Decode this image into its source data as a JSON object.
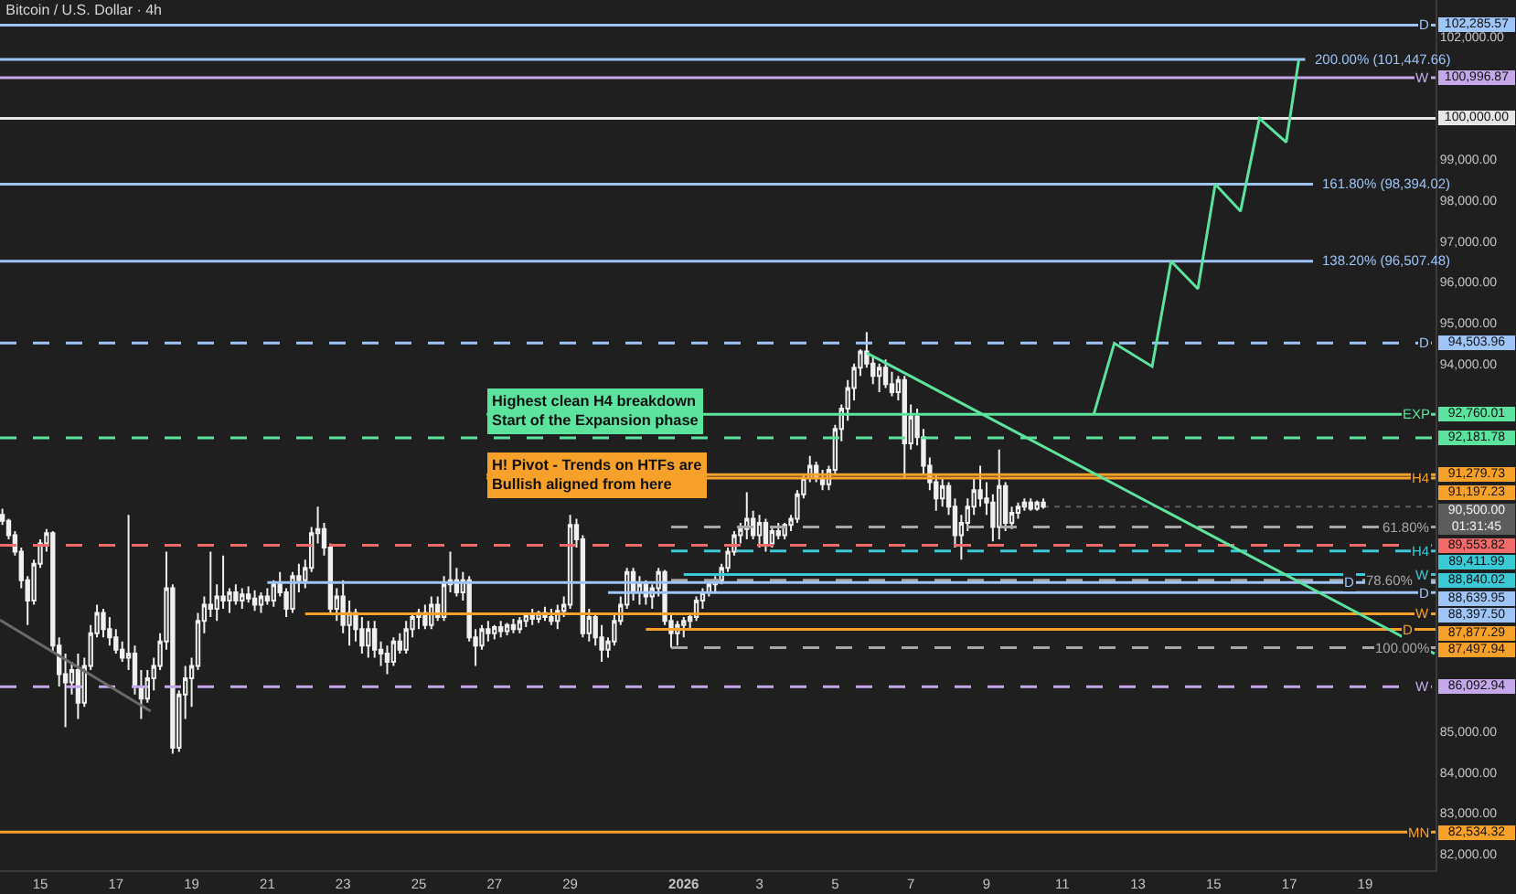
{
  "chart_data": {
    "type": "candlestick",
    "title": "Bitcoin / U.S. Dollar · 4h",
    "x": [
      "2025-12-14T00:00",
      "2025-12-14T04:00",
      "2025-12-14T08:00",
      "2025-12-14T12:00",
      "2025-12-14T16:00",
      "2025-12-14T20:00",
      "2025-12-15T00:00",
      "2025-12-15T04:00",
      "2025-12-15T08:00",
      "2025-12-15T12:00",
      "2025-12-15T16:00",
      "2025-12-15T20:00",
      "2025-12-16T00:00",
      "2025-12-16T04:00",
      "2025-12-16T08:00",
      "2025-12-16T12:00",
      "2025-12-16T16:00",
      "2025-12-16T20:00",
      "2025-12-17T00:00",
      "2025-12-17T04:00",
      "2025-12-17T08:00",
      "2025-12-17T12:00",
      "2025-12-17T16:00",
      "2025-12-17T20:00",
      "2025-12-18T00:00",
      "2025-12-18T04:00",
      "2025-12-18T08:00",
      "2025-12-18T12:00",
      "2025-12-18T16:00",
      "2025-12-18T20:00",
      "2025-12-19T00:00",
      "2025-12-19T04:00",
      "2025-12-19T08:00",
      "2025-12-19T12:00",
      "2025-12-19T16:00",
      "2025-12-19T20:00",
      "2025-12-20T00:00",
      "2025-12-20T04:00",
      "2025-12-20T08:00",
      "2025-12-20T12:00",
      "2025-12-20T16:00",
      "2025-12-20T20:00",
      "2025-12-21T00:00",
      "2025-12-21T04:00",
      "2025-12-21T08:00",
      "2025-12-21T12:00",
      "2025-12-21T16:00",
      "2025-12-21T20:00",
      "2025-12-22T00:00",
      "2025-12-22T04:00",
      "2025-12-22T08:00",
      "2025-12-22T12:00",
      "2025-12-22T16:00",
      "2025-12-22T20:00",
      "2025-12-23T00:00",
      "2025-12-23T04:00",
      "2025-12-23T08:00",
      "2025-12-23T12:00",
      "2025-12-23T16:00",
      "2025-12-23T20:00",
      "2025-12-24T00:00",
      "2025-12-24T04:00",
      "2025-12-24T08:00",
      "2025-12-24T12:00",
      "2025-12-24T16:00",
      "2025-12-24T20:00",
      "2025-12-25T00:00",
      "2025-12-25T04:00",
      "2025-12-25T08:00",
      "2025-12-25T12:00",
      "2025-12-25T16:00",
      "2025-12-25T20:00",
      "2025-12-26T00:00",
      "2025-12-26T04:00",
      "2025-12-26T08:00",
      "2025-12-26T12:00",
      "2025-12-26T16:00",
      "2025-12-26T20:00",
      "2025-12-27T00:00",
      "2025-12-27T04:00",
      "2025-12-27T08:00",
      "2025-12-27T12:00",
      "2025-12-27T16:00",
      "2025-12-27T20:00",
      "2025-12-28T00:00",
      "2025-12-28T04:00",
      "2025-12-28T08:00",
      "2025-12-28T12:00",
      "2025-12-28T16:00",
      "2025-12-28T20:00",
      "2025-12-29T00:00",
      "2025-12-29T04:00",
      "2025-12-29T08:00",
      "2025-12-29T12:00",
      "2025-12-29T16:00",
      "2025-12-29T20:00",
      "2025-12-30T00:00",
      "2025-12-30T04:00",
      "2025-12-30T08:00",
      "2025-12-30T12:00",
      "2025-12-30T16:00",
      "2025-12-30T20:00",
      "2025-12-31T00:00",
      "2025-12-31T04:00",
      "2025-12-31T08:00",
      "2025-12-31T12:00",
      "2025-12-31T16:00",
      "2025-12-31T20:00",
      "2026-01-01T00:00",
      "2026-01-01T04:00",
      "2026-01-01T08:00",
      "2026-01-01T12:00",
      "2026-01-01T16:00",
      "2026-01-01T20:00",
      "2026-01-02T00:00",
      "2026-01-02T04:00",
      "2026-01-02T08:00",
      "2026-01-02T12:00",
      "2026-01-02T16:00",
      "2026-01-02T20:00",
      "2026-01-03T00:00",
      "2026-01-03T04:00",
      "2026-01-03T08:00",
      "2026-01-03T12:00",
      "2026-01-03T16:00",
      "2026-01-03T20:00",
      "2026-01-04T00:00",
      "2026-01-04T04:00",
      "2026-01-04T08:00",
      "2026-01-04T12:00",
      "2026-01-04T16:00",
      "2026-01-04T20:00",
      "2026-01-05T00:00",
      "2026-01-05T04:00",
      "2026-01-05T08:00",
      "2026-01-05T12:00",
      "2026-01-05T16:00",
      "2026-01-05T20:00",
      "2026-01-06T00:00",
      "2026-01-06T04:00",
      "2026-01-06T08:00",
      "2026-01-06T12:00",
      "2026-01-06T16:00",
      "2026-01-06T20:00",
      "2026-01-07T00:00",
      "2026-01-07T04:00",
      "2026-01-07T08:00",
      "2026-01-07T12:00",
      "2026-01-07T16:00",
      "2026-01-07T20:00",
      "2026-01-08T00:00",
      "2026-01-08T04:00",
      "2026-01-08T08:00",
      "2026-01-08T12:00",
      "2026-01-08T16:00",
      "2026-01-08T20:00",
      "2026-01-09T00:00",
      "2026-01-09T04:00",
      "2026-01-09T08:00",
      "2026-01-09T12:00",
      "2026-01-09T16:00",
      "2026-01-09T20:00",
      "2026-01-10T00:00",
      "2026-01-10T04:00",
      "2026-01-10T08:00",
      "2026-01-10T12:00"
    ],
    "ohlc": [
      [
        90300,
        90450,
        90050,
        90150
      ],
      [
        90150,
        90200,
        89700,
        89800
      ],
      [
        89800,
        89900,
        89300,
        89400
      ],
      [
        89400,
        89500,
        88500,
        88700
      ],
      [
        88700,
        88800,
        87600,
        88200
      ],
      [
        88200,
        89200,
        88100,
        89100
      ],
      [
        89100,
        89700,
        89000,
        89600
      ],
      [
        89600,
        89950,
        89400,
        89850
      ],
      [
        89850,
        89900,
        86950,
        87100
      ],
      [
        87100,
        87300,
        86100,
        86400
      ],
      [
        86400,
        86900,
        85100,
        86200
      ],
      [
        86200,
        86700,
        85900,
        86500
      ],
      [
        86500,
        86900,
        85300,
        85700
      ],
      [
        85700,
        86800,
        85600,
        86600
      ],
      [
        86600,
        87600,
        86500,
        87400
      ],
      [
        87400,
        88100,
        87300,
        87900
      ],
      [
        87900,
        88000,
        87300,
        87500
      ],
      [
        87500,
        87800,
        87100,
        87300
      ],
      [
        87300,
        87500,
        86900,
        87000
      ],
      [
        87000,
        87200,
        86700,
        86800
      ],
      [
        86800,
        90300,
        86500,
        86900
      ],
      [
        86900,
        87100,
        85900,
        86100
      ],
      [
        86100,
        86500,
        85300,
        85800
      ],
      [
        85800,
        86500,
        85700,
        86300
      ],
      [
        86300,
        86800,
        86000,
        86600
      ],
      [
        86600,
        87400,
        86500,
        87200
      ],
      [
        87200,
        89400,
        87000,
        88500
      ],
      [
        88500,
        88600,
        84450,
        84600
      ],
      [
        84600,
        86000,
        84500,
        85900
      ],
      [
        85900,
        86600,
        85300,
        86300
      ],
      [
        86300,
        86800,
        85600,
        86600
      ],
      [
        86600,
        87900,
        86500,
        87700
      ],
      [
        87700,
        88300,
        87400,
        88100
      ],
      [
        88100,
        89400,
        87800,
        88000
      ],
      [
        88000,
        88600,
        87700,
        88300
      ],
      [
        88300,
        89300,
        88000,
        88200
      ],
      [
        88200,
        88500,
        87900,
        88400
      ],
      [
        88400,
        88600,
        88100,
        88200
      ],
      [
        88200,
        88500,
        88000,
        88350
      ],
      [
        88350,
        88550,
        88150,
        88250
      ],
      [
        88250,
        88450,
        87950,
        88100
      ],
      [
        88100,
        88400,
        87900,
        88300
      ],
      [
        88300,
        88500,
        88100,
        88200
      ],
      [
        88200,
        88700,
        88050,
        88600
      ],
      [
        88600,
        88900,
        88300,
        88400
      ],
      [
        88400,
        88500,
        87800,
        88000
      ],
      [
        88000,
        88900,
        87900,
        88800
      ],
      [
        88800,
        89100,
        88400,
        88700
      ],
      [
        88700,
        89200,
        88500,
        89000
      ],
      [
        89000,
        90000,
        88900,
        89850
      ],
      [
        89850,
        90500,
        89600,
        89950
      ],
      [
        89950,
        90100,
        89300,
        89500
      ],
      [
        89500,
        89600,
        87900,
        88000
      ],
      [
        88000,
        88500,
        87700,
        88300
      ],
      [
        88300,
        88700,
        87400,
        87600
      ],
      [
        87600,
        88200,
        87100,
        87900
      ],
      [
        87900,
        88000,
        87200,
        87500
      ],
      [
        87500,
        87800,
        86900,
        87100
      ],
      [
        87100,
        87700,
        86800,
        87500
      ],
      [
        87500,
        87700,
        86800,
        87000
      ],
      [
        87000,
        87200,
        86600,
        86900
      ],
      [
        86900,
        87100,
        86400,
        86700
      ],
      [
        86700,
        87300,
        86600,
        87200
      ],
      [
        87200,
        87400,
        86900,
        87000
      ],
      [
        87000,
        87700,
        86900,
        87500
      ],
      [
        87500,
        87900,
        87300,
        87800
      ],
      [
        87800,
        88000,
        87500,
        87900
      ],
      [
        87900,
        88100,
        87500,
        87600
      ],
      [
        87600,
        88300,
        87500,
        88100
      ],
      [
        88100,
        88300,
        87700,
        87800
      ],
      [
        87800,
        88800,
        87700,
        88600
      ],
      [
        88600,
        89400,
        88400,
        88700
      ],
      [
        88700,
        89000,
        88300,
        88400
      ],
      [
        88400,
        88900,
        88200,
        88700
      ],
      [
        88700,
        88800,
        87200,
        87300
      ],
      [
        87300,
        87500,
        86600,
        87100
      ],
      [
        87100,
        87600,
        87000,
        87500
      ],
      [
        87500,
        87700,
        87200,
        87400
      ],
      [
        87400,
        87600,
        87250,
        87550
      ],
      [
        87550,
        87700,
        87300,
        87450
      ],
      [
        87450,
        87650,
        87350,
        87600
      ],
      [
        87600,
        87750,
        87400,
        87500
      ],
      [
        87500,
        87800,
        87400,
        87700
      ],
      [
        87700,
        87900,
        87550,
        87850
      ],
      [
        87850,
        88000,
        87600,
        87750
      ],
      [
        87750,
        87950,
        87650,
        87900
      ],
      [
        87900,
        88050,
        87700,
        87800
      ],
      [
        87800,
        88000,
        87600,
        87700
      ],
      [
        87700,
        88100,
        87500,
        87950
      ],
      [
        87950,
        88300,
        87800,
        88100
      ],
      [
        88100,
        90300,
        88000,
        90050
      ],
      [
        90050,
        90200,
        89500,
        89700
      ],
      [
        89700,
        89800,
        87300,
        87400
      ],
      [
        87400,
        88000,
        87200,
        87800
      ],
      [
        87800,
        87900,
        87100,
        87300
      ],
      [
        87300,
        87600,
        86700,
        87000
      ],
      [
        87000,
        87300,
        86800,
        87200
      ],
      [
        87200,
        87900,
        87100,
        87700
      ],
      [
        87700,
        88300,
        87600,
        88100
      ],
      [
        88100,
        89000,
        88000,
        88900
      ],
      [
        88900,
        89000,
        88200,
        88400
      ],
      [
        88400,
        88800,
        88100,
        88600
      ],
      [
        88600,
        88700,
        88100,
        88300
      ],
      [
        88300,
        88600,
        88000,
        88500
      ],
      [
        88500,
        89000,
        88300,
        88900
      ],
      [
        88900,
        88950,
        87600,
        87700
      ],
      [
        87700,
        87900,
        87050,
        87400
      ],
      [
        87400,
        87700,
        87100,
        87600
      ],
      [
        87600,
        87800,
        87300,
        87700
      ],
      [
        87700,
        87900,
        87500,
        87800
      ],
      [
        87800,
        88300,
        87700,
        88200
      ],
      [
        88200,
        88500,
        88000,
        88400
      ],
      [
        88400,
        88700,
        88300,
        88600
      ],
      [
        88600,
        88800,
        88400,
        88700
      ],
      [
        88700,
        89100,
        88600,
        89000
      ],
      [
        89000,
        89500,
        88900,
        89400
      ],
      [
        89400,
        89900,
        89300,
        89800
      ],
      [
        89800,
        90100,
        89600,
        89950
      ],
      [
        89950,
        90850,
        89700,
        90200
      ],
      [
        90200,
        90400,
        89700,
        89800
      ],
      [
        89800,
        90300,
        89500,
        90100
      ],
      [
        90100,
        90200,
        89400,
        89600
      ],
      [
        89600,
        90000,
        89500,
        89900
      ],
      [
        89900,
        90100,
        89700,
        89800
      ],
      [
        89800,
        90100,
        89700,
        90050
      ],
      [
        90050,
        90300,
        89900,
        90200
      ],
      [
        90200,
        90900,
        90100,
        90800
      ],
      [
        90800,
        91300,
        90700,
        91200
      ],
      [
        91200,
        91740,
        91100,
        91500
      ],
      [
        91500,
        91600,
        91100,
        91200
      ],
      [
        91200,
        91400,
        90900,
        91050
      ],
      [
        91050,
        91500,
        90900,
        91400
      ],
      [
        91400,
        92500,
        91300,
        92400
      ],
      [
        92400,
        93000,
        92100,
        92900
      ],
      [
        92900,
        93600,
        92600,
        93400
      ],
      [
        93400,
        94000,
        93100,
        93900
      ],
      [
        93900,
        94350,
        93700,
        94300
      ],
      [
        94300,
        94770,
        93900,
        94000
      ],
      [
        94000,
        94200,
        93500,
        93700
      ],
      [
        93700,
        94000,
        93300,
        93900
      ],
      [
        93900,
        94100,
        93400,
        93500
      ],
      [
        93500,
        93800,
        93200,
        93300
      ],
      [
        93300,
        93700,
        93100,
        93600
      ],
      [
        93600,
        93700,
        91200,
        92050
      ],
      [
        92050,
        93000,
        91900,
        92700
      ],
      [
        92700,
        92900,
        92000,
        92200
      ],
      [
        92200,
        92400,
        91300,
        91500
      ],
      [
        91500,
        91700,
        90900,
        91100
      ],
      [
        91100,
        91300,
        90400,
        90700
      ],
      [
        90700,
        91200,
        90500,
        91000
      ],
      [
        91000,
        91100,
        90300,
        90500
      ],
      [
        90500,
        90700,
        89500,
        89800
      ],
      [
        89800,
        90300,
        89200,
        90100
      ],
      [
        90100,
        90700,
        89900,
        90500
      ],
      [
        90500,
        91200,
        90300,
        90900
      ],
      [
        90900,
        91500,
        90500,
        90700
      ],
      [
        90700,
        91100,
        90300,
        90600
      ],
      [
        90600,
        90800,
        89650,
        90000
      ],
      [
        90000,
        91900,
        89700,
        91000
      ],
      [
        91000,
        91100,
        89900,
        90100
      ],
      [
        90100,
        90500,
        89950,
        90350
      ],
      [
        90350,
        90600,
        90200,
        90500
      ],
      [
        90500,
        90700,
        90400,
        90600
      ],
      [
        90600,
        90700,
        90400,
        90450
      ],
      [
        90450,
        90650,
        90400,
        90600
      ],
      [
        90600,
        90700,
        90450,
        90500
      ]
    ],
    "series": [
      {
        "type": "line",
        "name": "D",
        "color": "#9fc5f8",
        "x": [
          "2025-12-13T22:30",
          "2026-01-20T20:40"
        ],
        "values": [
          102285.57,
          102285.57
        ],
        "value_labels": [
          null,
          "102,285.57"
        ]
      },
      {
        "type": "line",
        "name": "200.00% (101,447.66)",
        "color": "#9fc5f8",
        "x": [
          "2025-12-13T22:30",
          "2026-01-17T10:00"
        ],
        "values": [
          101447.66,
          101447.66
        ]
      },
      {
        "type": "line",
        "name": "W",
        "color": "#c5a8ea",
        "x": [
          "2025-12-13T22:30",
          "2026-01-20T20:40"
        ],
        "values": [
          100996.87,
          100996.87
        ],
        "value_labels": [
          null,
          "100,996.87"
        ]
      },
      {
        "type": "line",
        "color": "#e6e6e6",
        "x": [
          "2025-12-13T22:30",
          "2026-01-20T20:40"
        ],
        "values": [
          100000,
          100000
        ],
        "value_labels": [
          null,
          "100,000.00"
        ]
      },
      {
        "type": "line",
        "name": "161.80% (98,394.02)",
        "color": "#9fc5f8",
        "x": [
          "2025-12-13T22:30",
          "2026-01-17T15:00"
        ],
        "values": [
          98394.02,
          98394.02
        ]
      },
      {
        "type": "line",
        "name": "138.20% (96,507.48)",
        "color": "#9fc5f8",
        "x": [
          "2025-12-13T22:30",
          "2026-01-17T15:00"
        ],
        "values": [
          96507.48,
          96507.48
        ]
      },
      {
        "type": "line",
        "name": "D",
        "color": "#9fc5f8",
        "line_style": "dashed",
        "x": [
          "2025-12-13T22:30",
          "2026-01-20T20:40"
        ],
        "values": [
          94503.96,
          94503.96
        ],
        "value_labels": [
          null,
          "94,503.96"
        ]
      },
      {
        "type": "line",
        "name": "EXP",
        "color": "#5ce39e",
        "x": [
          "2025-12-26T19:00",
          "2026-01-20T20:40"
        ],
        "values": [
          92760.01,
          92760.01
        ],
        "value_labels": [
          null,
          "92,760.01"
        ]
      },
      {
        "type": "line",
        "color": "#5ce39e",
        "line_style": "dashed",
        "x": [
          "2025-12-13T22:30",
          "2026-01-20T20:40"
        ],
        "values": [
          92181.78,
          92181.78
        ],
        "value_labels": [
          null,
          "92,181.78"
        ]
      },
      {
        "type": "line",
        "color": "#f7a12b",
        "x": [
          "2025-12-26T19:00",
          "2026-01-20T20:40"
        ],
        "values": [
          91279.73,
          91279.73
        ],
        "value_labels": [
          null,
          "91,279.73"
        ]
      },
      {
        "type": "line",
        "name": "H4",
        "color": "#f7a12b",
        "x": [
          "2025-12-26T19:00",
          "2026-01-20T20:40"
        ],
        "values": [
          91197.23,
          91197.23
        ],
        "value_labels": [
          null,
          "91,197.23"
        ]
      },
      {
        "type": "line",
        "name": "61.80%",
        "color": "#a8a8a8",
        "line_style": "dashed",
        "x": [
          "2025-12-31T16:00",
          "2026-01-20T20:40"
        ],
        "values": [
          90000,
          90000
        ]
      },
      {
        "type": "line",
        "color": "#f26b6b",
        "line_style": "dashed",
        "x": [
          "2025-12-13T22:30",
          "2026-01-20T20:40"
        ],
        "values": [
          89553.82,
          89553.82
        ],
        "value_labels": [
          null,
          "89,553.82"
        ]
      },
      {
        "type": "line",
        "name": "H4",
        "color": "#3cc9d6",
        "line_style": "dashed",
        "x": [
          "2025-12-31T16:00",
          "2026-01-20T20:40"
        ],
        "values": [
          89411.99,
          89411.99
        ],
        "value_labels": [
          null,
          "89,411.99"
        ]
      },
      {
        "type": "line",
        "name": "W",
        "color": "#3cc9d6",
        "x": [
          "2026-01-01T00:00",
          "2026-01-20T20:40"
        ],
        "values": [
          88840.02,
          88840.02
        ],
        "value_labels": [
          null,
          "88,840.02"
        ]
      },
      {
        "type": "line",
        "name": "78.60%",
        "color": "#a8a8a8",
        "line_style": "dashed",
        "x": [
          "2025-12-31T16:00",
          "2026-01-20T20:40"
        ],
        "values": [
          88700,
          88700
        ]
      },
      {
        "type": "line",
        "name": "D",
        "color": "#9fc5f8",
        "x": [
          "2025-12-21T00:00",
          "2026-01-20T20:40"
        ],
        "values": [
          88639.95,
          88639.95
        ],
        "value_labels": [
          null,
          "88,639.95"
        ]
      },
      {
        "type": "line",
        "name": "D",
        "color": "#9fc5f8",
        "x": [
          "2025-12-30T00:00",
          "2026-01-20T20:40"
        ],
        "values": [
          88397.5,
          88397.5
        ],
        "value_labels": [
          null,
          "88,397.50"
        ]
      },
      {
        "type": "line",
        "name": "W",
        "color": "#f7a12b",
        "x": [
          "2025-12-22T00:00",
          "2026-01-20T20:40"
        ],
        "values": [
          87877.29,
          87877.29
        ],
        "value_labels": [
          null,
          "87,877.29"
        ]
      },
      {
        "type": "line",
        "name": "D",
        "color": "#f7a12b",
        "x": [
          "2025-12-31T00:00",
          "2026-01-20T20:40"
        ],
        "values": [
          87497.94,
          87497.94
        ],
        "value_labels": [
          null,
          "87,497.94"
        ]
      },
      {
        "type": "line",
        "name": "100.00%",
        "color": "#a8a8a8",
        "line_style": "dashed",
        "x": [
          "2025-12-31T16:00",
          "2026-01-20T20:40"
        ],
        "values": [
          87050,
          87050
        ]
      },
      {
        "type": "line",
        "name": "W",
        "color": "#c5a8ea",
        "line_style": "dashed",
        "x": [
          "2025-12-13T22:30",
          "2026-01-20T20:40"
        ],
        "values": [
          86092.94,
          86092.94
        ],
        "value_labels": [
          null,
          "86,092.94"
        ]
      },
      {
        "type": "line",
        "name": "MN",
        "color": "#f7a12b",
        "x": [
          "2025-12-13T22:30",
          "2026-01-20T20:40"
        ],
        "values": [
          82534.32,
          82534.32
        ],
        "value_labels": [
          null,
          "82,534.32"
        ]
      },
      {
        "type": "line",
        "color": "#5ce39e",
        "x": [
          "2026-01-05T20:00",
          "2026-01-20T20:00"
        ],
        "values": [
          94260,
          86900
        ]
      },
      {
        "type": "line",
        "color": "#5ce39e",
        "x": [
          "2026-01-11T20:00",
          "2026-01-12T09:00",
          "2026-01-13T09:00",
          "2026-01-13T21:00",
          "2026-01-14T14:00",
          "2026-01-15T01:00",
          "2026-01-15T17:00",
          "2026-01-16T05:00",
          "2026-01-16T22:00",
          "2026-01-17T06:00"
        ],
        "values": [
          92760,
          94500,
          93930,
          96507,
          95830,
          98394,
          97730,
          100000,
          99420,
          101447
        ]
      },
      {
        "type": "line",
        "color": "#6a6a6a",
        "x": [
          "2025-12-13T22:30",
          "2025-12-17T22:00"
        ],
        "values": [
          87725,
          85495
        ]
      }
    ],
    "ref_lines": [
      {
        "axis": "y",
        "value": 90500,
        "label": "90,500.00\n01:31:45",
        "color": "#5c5c5c",
        "line_style": "dotted"
      }
    ],
    "annotations": [
      {
        "text": "Highest clean H4 breakdown\nStart of the Expansion phase",
        "x": "2025-12-26T19:00",
        "y": 92760.01
      },
      {
        "text": "H! Pivot - Trends on HTFs are\nBullish aligned from here",
        "x": "2025-12-26T19:00",
        "y": 91197.23
      }
    ],
    "xlim": [
      "2025-12-13T22:30",
      "2026-01-20T20:40"
    ],
    "xticks": [
      {
        "value": "2025-12-15",
        "label": "15"
      },
      {
        "value": "2025-12-17",
        "label": "17"
      },
      {
        "value": "2025-12-19",
        "label": "19"
      },
      {
        "value": "2025-12-21",
        "label": "21"
      },
      {
        "value": "2025-12-23",
        "label": "23"
      },
      {
        "value": "2025-12-25",
        "label": "25"
      },
      {
        "value": "2025-12-27",
        "label": "27"
      },
      {
        "value": "2025-12-29",
        "label": "29"
      },
      {
        "value": "2026-01-01",
        "label": "2026"
      },
      {
        "value": "2026-01-03",
        "label": "3"
      },
      {
        "value": "2026-01-05",
        "label": "5"
      },
      {
        "value": "2026-01-07",
        "label": "7"
      },
      {
        "value": "2026-01-09",
        "label": "9"
      },
      {
        "value": "2026-01-11",
        "label": "11"
      },
      {
        "value": "2026-01-13",
        "label": "13"
      },
      {
        "value": "2026-01-15",
        "label": "15"
      },
      {
        "value": "2026-01-17",
        "label": "17"
      },
      {
        "value": "2026-01-19",
        "label": "19"
      }
    ],
    "ylim": [
      81600,
      102900
    ],
    "yticks": [
      {
        "value": 82000,
        "label": "82,000.00"
      },
      {
        "value": 83000,
        "label": "83,000.00"
      },
      {
        "value": 84000,
        "label": "84,000.00"
      },
      {
        "value": 85000,
        "label": "85,000.00"
      },
      {
        "value": 94000,
        "label": "94,000.00"
      },
      {
        "value": 95000,
        "label": "95,000.00"
      },
      {
        "value": 96000,
        "label": "96,000.00"
      },
      {
        "value": 97000,
        "label": "97,000.00"
      },
      {
        "value": 98000,
        "label": "98,000.00"
      },
      {
        "value": 99000,
        "label": "99,000.00"
      },
      {
        "value": 102000,
        "label": "102,000.00"
      }
    ]
  }
}
